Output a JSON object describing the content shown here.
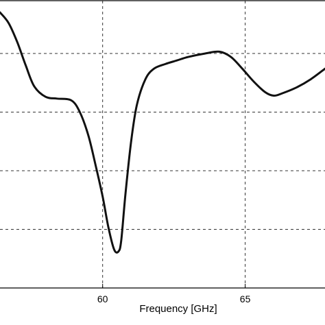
{
  "chart_data": {
    "type": "line",
    "title": "",
    "xlabel": "Frequency [GHz]",
    "ylabel": "",
    "xlim": [
      56.4,
      67.8
    ],
    "ylim": [
      -25,
      -0.5
    ],
    "x_ticks": [
      60,
      65
    ],
    "x_tick_labels": [
      "60",
      "65"
    ],
    "y_gridlines": [
      -20,
      -15,
      -10,
      -5
    ],
    "grid": true,
    "grid_style": "dashed",
    "line_color": "#111111",
    "series": [
      {
        "x": [
          56.4,
          56.7,
          57.0,
          57.3,
          57.6,
          58.0,
          58.4,
          58.9,
          59.2,
          59.5,
          59.75,
          60.0,
          60.2,
          60.4,
          60.55,
          60.65,
          60.8,
          61.0,
          61.2,
          61.5,
          61.8,
          62.2,
          62.6,
          63.0,
          63.6,
          64.1,
          64.5,
          64.9,
          65.3,
          65.7,
          66.0,
          66.3,
          66.8,
          67.3,
          67.8
        ],
        "y": [
          -1.5,
          -2.4,
          -4.0,
          -6.0,
          -7.8,
          -8.7,
          -8.85,
          -9.0,
          -10.0,
          -12.0,
          -14.5,
          -17.2,
          -19.8,
          -21.7,
          -21.9,
          -21.0,
          -17.0,
          -12.5,
          -9.4,
          -7.2,
          -6.3,
          -5.9,
          -5.6,
          -5.3,
          -5.0,
          -4.85,
          -5.3,
          -6.3,
          -7.4,
          -8.3,
          -8.6,
          -8.4,
          -7.9,
          -7.2,
          -6.3
        ]
      }
    ]
  }
}
